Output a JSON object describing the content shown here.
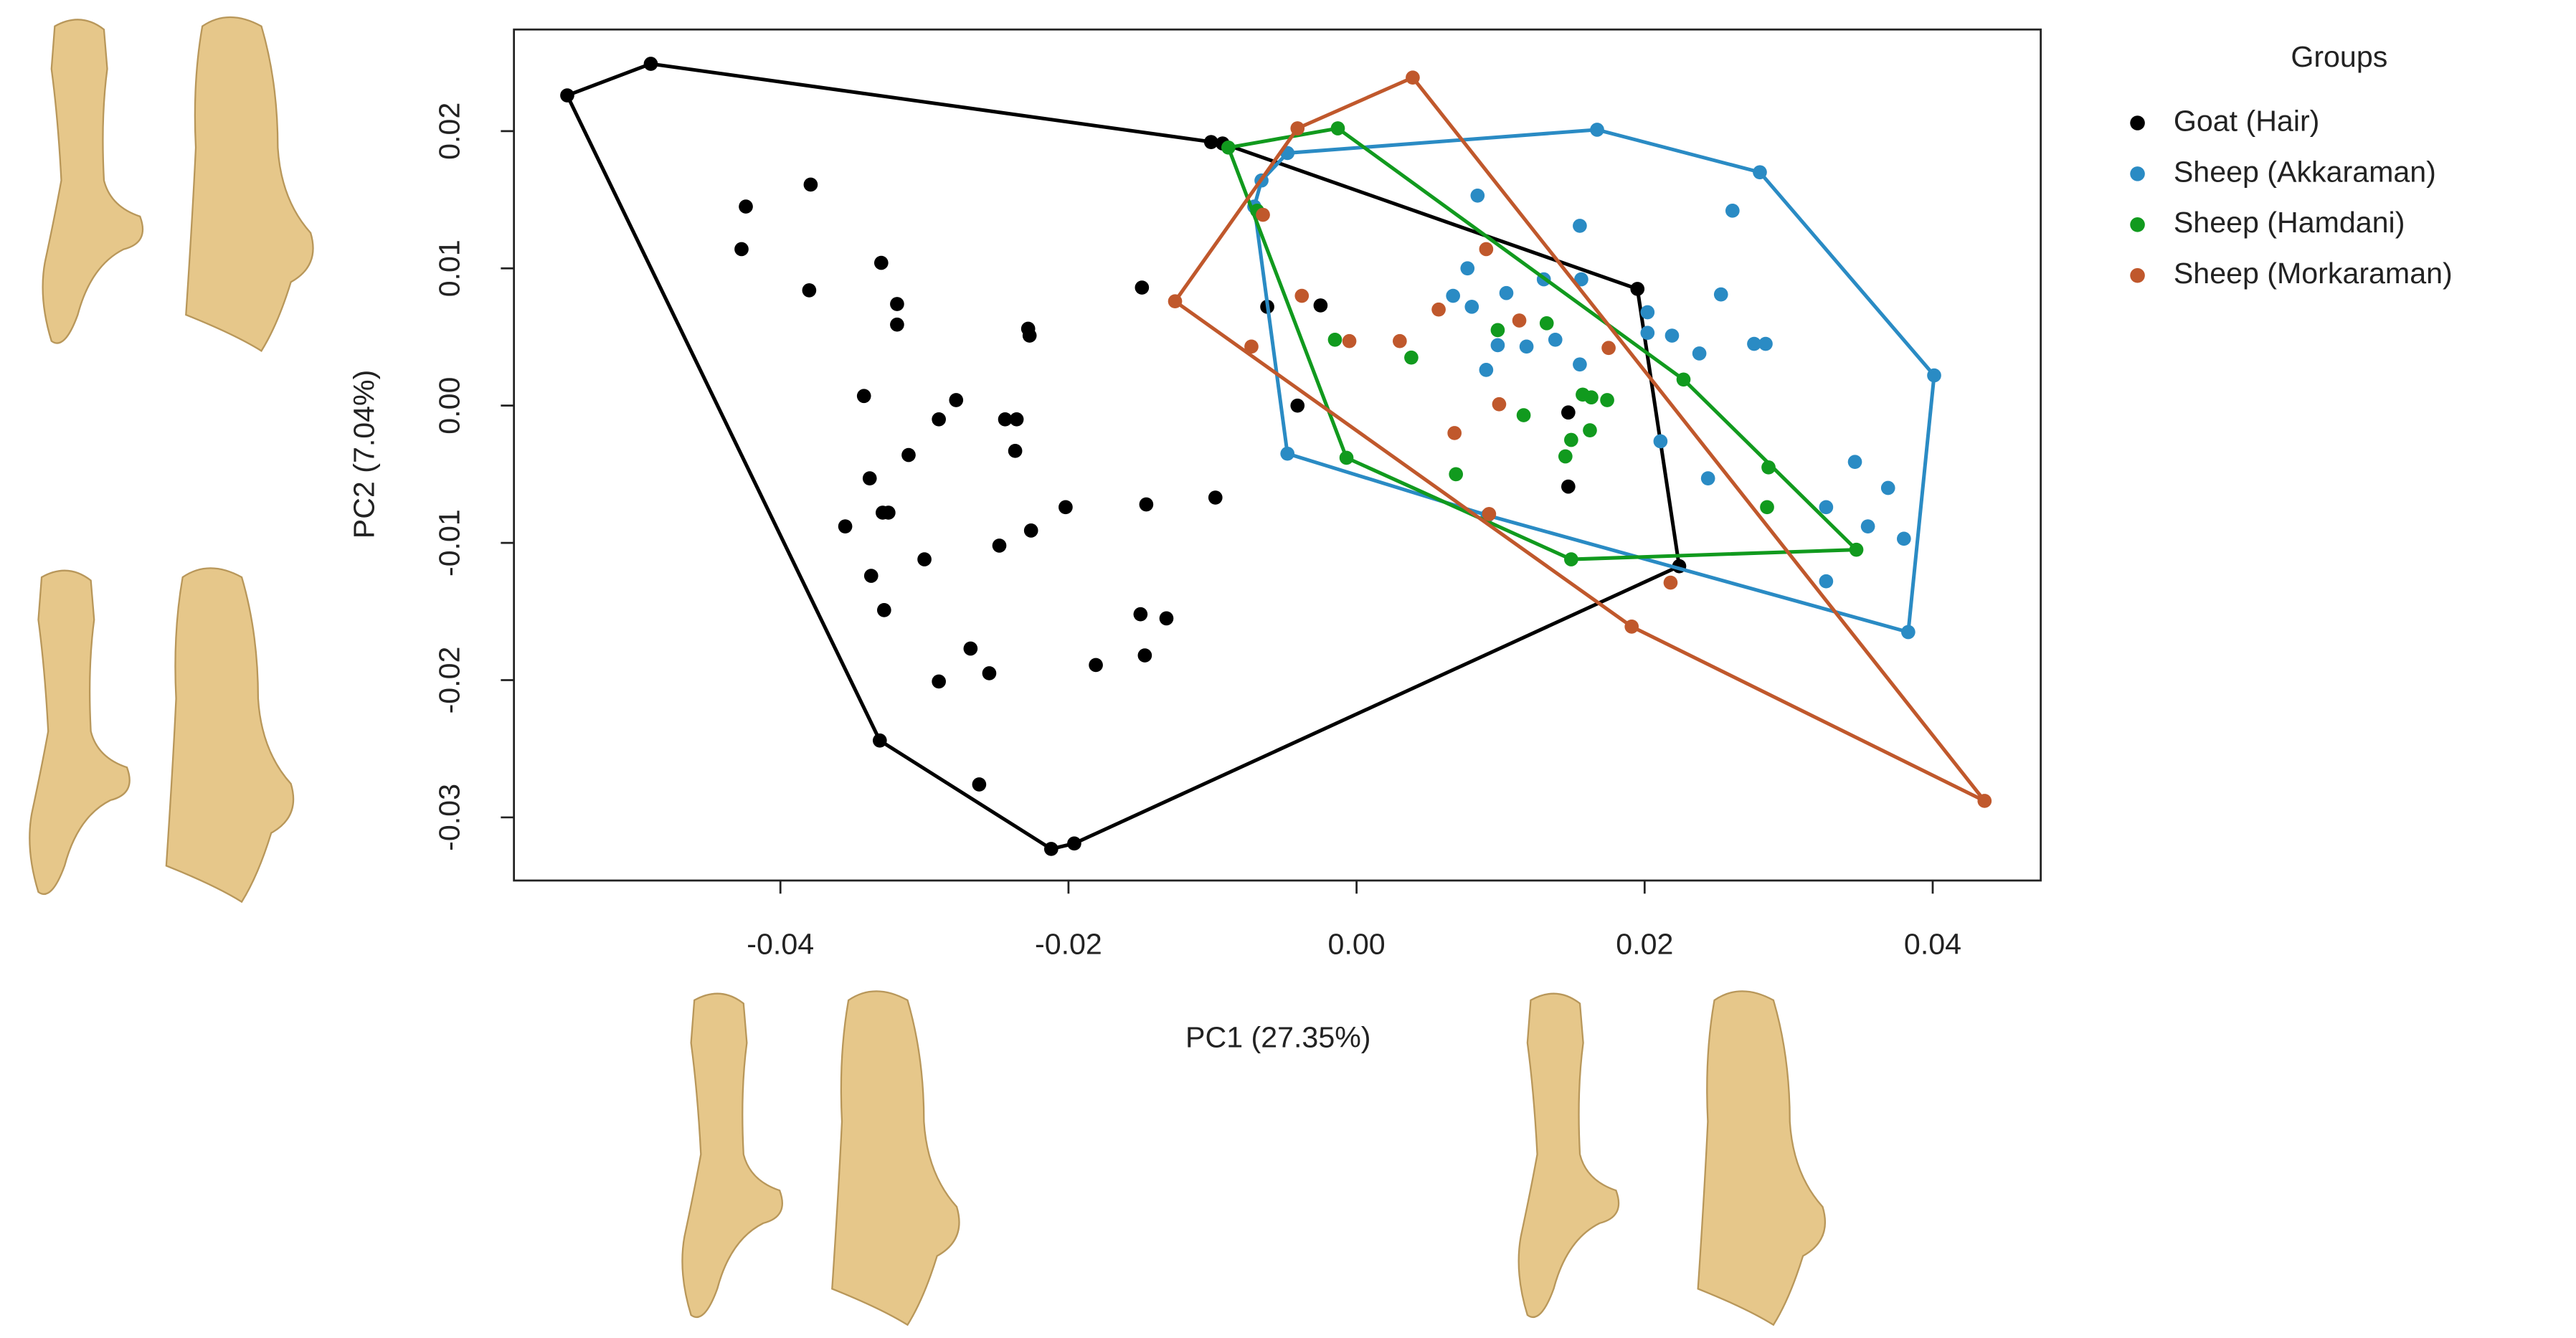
{
  "chart_data": {
    "type": "scatter",
    "x_label": "PC1 (27.35%)",
    "y_label": "PC2 (7.04%)",
    "legend_title": "Groups",
    "legend": "top-right",
    "xlim": [
      -0.0585,
      0.0475
    ],
    "ylim": [
      -0.0346,
      0.0274
    ],
    "xticks": [
      -0.04,
      -0.02,
      {
        "value": 0,
        "label": "0.00"
      },
      0.02,
      0.04
    ],
    "yticks": [
      -0.03,
      -0.02,
      -0.01,
      {
        "value": 0,
        "label": "0.00"
      },
      0.01,
      0.02
    ],
    "convex_hulls": true,
    "series": [
      {
        "name": "Goat (Hair)",
        "color": "#000000",
        "x": [
          -0.0548,
          -0.049,
          -0.0101,
          -0.0093,
          0.0195,
          0.0224,
          -0.0196,
          -0.0212,
          -0.0331,
          -0.0424,
          -0.0427,
          -0.0379,
          -0.038,
          -0.033,
          -0.0319,
          -0.0319,
          -0.0342,
          -0.0338,
          -0.0355,
          -0.0329,
          -0.0325,
          -0.0337,
          -0.0328,
          -0.03,
          -0.029,
          -0.0278,
          -0.0311,
          -0.0248,
          -0.0226,
          -0.0244,
          -0.0236,
          -0.0237,
          -0.0228,
          -0.0227,
          -0.0202,
          -0.0146,
          -0.0098,
          -0.0149,
          -0.015,
          -0.0147,
          -0.0132,
          -0.0181,
          -0.0268,
          -0.0255,
          -0.029,
          -0.0262,
          -0.0062,
          -0.0025,
          -0.0041,
          0.0147,
          0.0147
        ],
        "values": [
          0.0226,
          0.0249,
          0.0192,
          0.0191,
          0.0085,
          -0.0117,
          -0.0319,
          -0.0323,
          -0.0244,
          0.0145,
          0.0114,
          0.0161,
          0.0084,
          0.0104,
          0.0074,
          0.0059,
          0.0007,
          -0.0053,
          -0.0088,
          -0.0078,
          -0.0078,
          -0.0124,
          -0.0149,
          -0.0112,
          -0.001,
          0.0004,
          -0.0036,
          -0.0102,
          -0.0091,
          -0.001,
          -0.001,
          -0.0033,
          0.0056,
          0.0051,
          -0.0074,
          -0.0072,
          -0.0067,
          0.0086,
          -0.0152,
          -0.0182,
          -0.0155,
          -0.0189,
          -0.0177,
          -0.0195,
          -0.0201,
          -0.0276,
          0.0072,
          0.0073,
          0.0,
          -0.0005,
          -0.0059
        ]
      },
      {
        "name": "Sheep (Akkaraman)",
        "color": "#2a8bc4",
        "x": [
          -0.0048,
          0.0167,
          0.028,
          0.0401,
          0.0383,
          -0.0048,
          -0.0066,
          -0.0071,
          0.0084,
          0.0261,
          0.0155,
          0.0067,
          0.0077,
          0.0104,
          0.013,
          0.0156,
          0.008,
          0.0098,
          0.0118,
          0.0138,
          0.009,
          0.0155,
          0.0202,
          0.0219,
          0.0202,
          0.0253,
          0.0238,
          0.0276,
          0.0284,
          0.0211,
          0.0244,
          0.0346,
          0.0369,
          0.0326,
          0.0355,
          0.038,
          0.0326,
          0.0091
        ],
        "values": [
          0.0184,
          0.0201,
          0.017,
          0.0022,
          -0.0165,
          -0.0035,
          0.0164,
          0.0145,
          0.0153,
          0.0142,
          0.0131,
          0.008,
          0.01,
          0.0082,
          0.0092,
          0.0092,
          0.0072,
          0.0044,
          0.0043,
          0.0048,
          0.0026,
          0.003,
          0.0068,
          0.0051,
          0.0053,
          0.0081,
          0.0038,
          0.0045,
          0.0045,
          -0.0026,
          -0.0053,
          -0.0041,
          -0.006,
          -0.0074,
          -0.0088,
          -0.0097,
          -0.0128,
          -0.008
        ]
      },
      {
        "name": "Sheep (Hamdani)",
        "color": "#119a1e",
        "x": [
          -0.0089,
          -0.0013,
          0.0347,
          0.0149,
          -0.0007,
          -0.0069,
          -0.0015,
          0.0038,
          0.0098,
          0.0132,
          0.0116,
          0.0069,
          0.0157,
          0.0163,
          0.0174,
          0.0162,
          0.0149,
          0.0145,
          0.0227,
          0.0286,
          0.0285
        ],
        "values": [
          0.0188,
          0.0202,
          -0.0105,
          -0.0112,
          -0.0038,
          0.0142,
          0.0048,
          0.0035,
          0.0055,
          0.006,
          -0.0007,
          -0.005,
          0.0008,
          0.0006,
          0.0004,
          -0.0018,
          -0.0025,
          -0.0037,
          0.0019,
          -0.0045,
          -0.0074
        ]
      },
      {
        "name": "Sheep (Morkaraman)",
        "color": "#c0582c",
        "x": [
          -0.0126,
          -0.0041,
          0.0039,
          0.0436,
          0.0191,
          0.0218,
          -0.0073,
          -0.0065,
          -0.0038,
          -0.0005,
          0.003,
          0.0057,
          0.009,
          0.0113,
          0.0175,
          0.0099,
          0.0068,
          0.0092
        ],
        "values": [
          0.0076,
          0.0202,
          0.0239,
          -0.0288,
          -0.0161,
          -0.0129,
          0.0043,
          0.0139,
          0.008,
          0.0047,
          0.0047,
          0.007,
          0.0114,
          0.0062,
          0.0042,
          0.0001,
          -0.002,
          -0.0079
        ]
      }
    ]
  }
}
